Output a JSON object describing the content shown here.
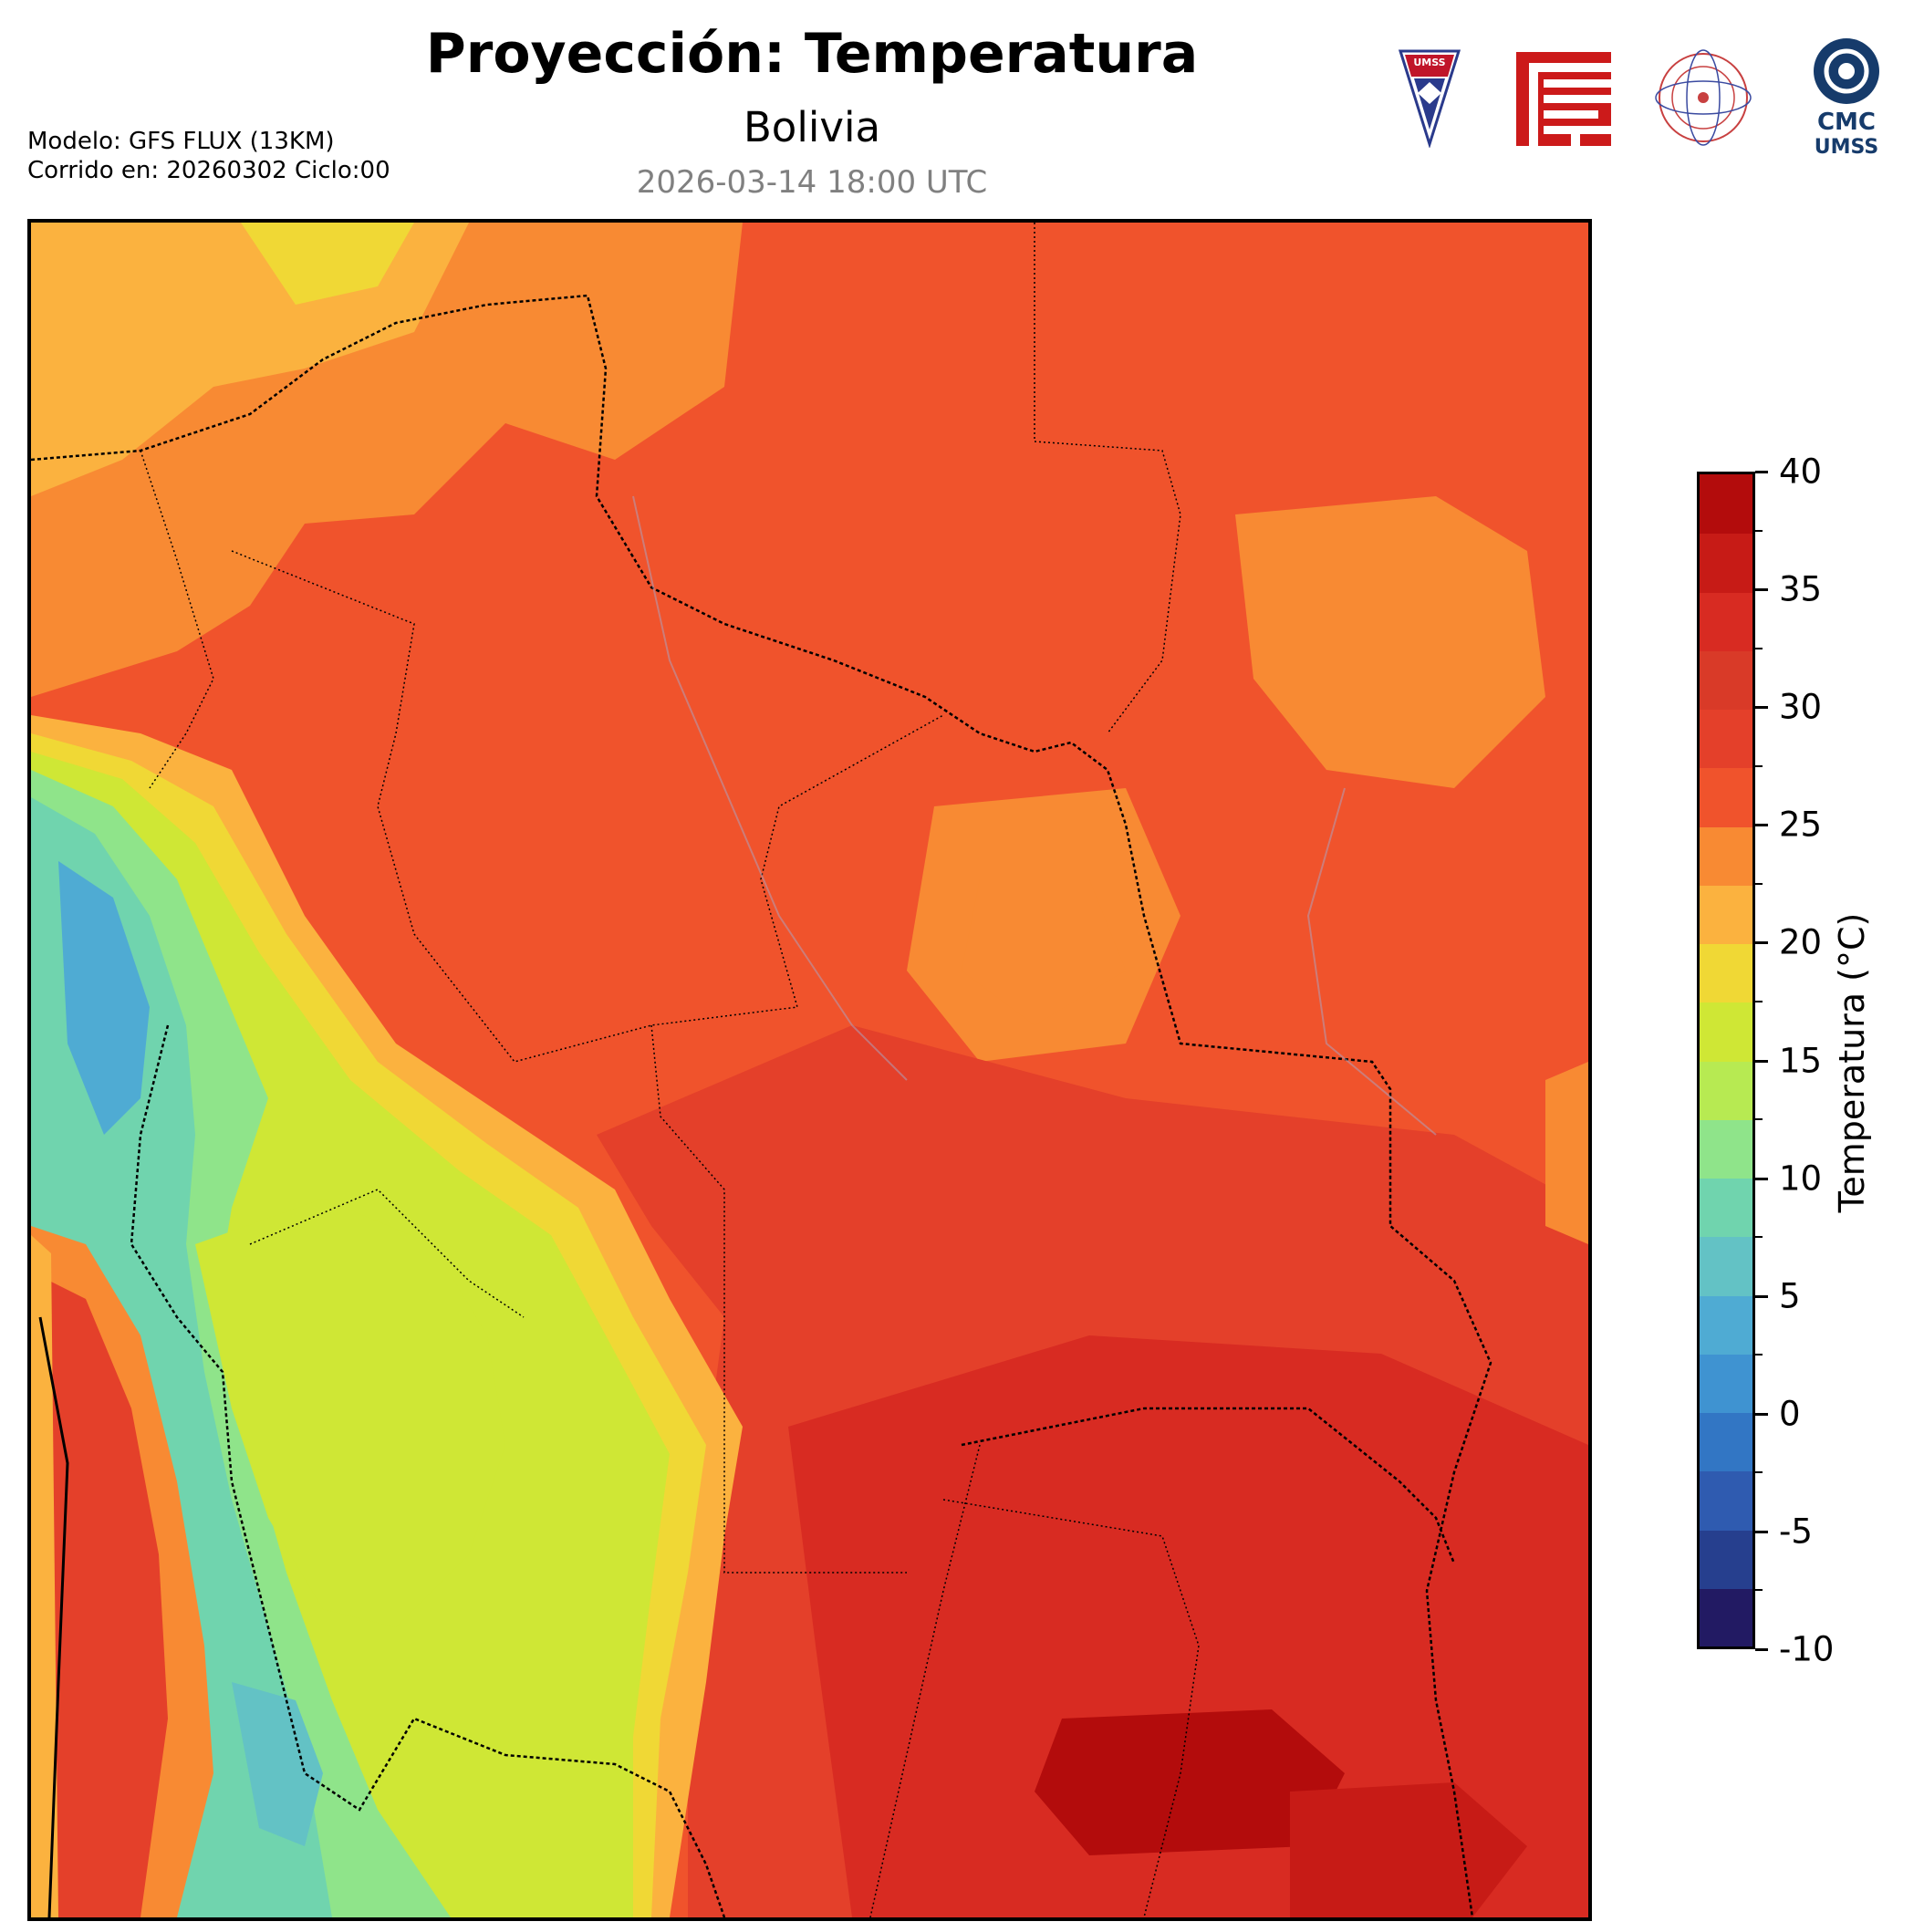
{
  "header": {
    "title": "Proyección: Temperatura",
    "region": "Bolivia",
    "valid_time": "2026-03-14 18:00 UTC",
    "model_line": "Modelo: GFS FLUX (13KM)",
    "run_line": "Corrido en: 20260302 Ciclo:00"
  },
  "logos": [
    {
      "name": "umss-shield-logo",
      "text": "UMSS"
    },
    {
      "name": "red-emblem-logo"
    },
    {
      "name": "departamento-de-fisica-seal"
    },
    {
      "name": "cmc-umss-logo",
      "line1": "CMC",
      "line2": "UMSS"
    }
  ],
  "colorbar": {
    "label": "Temperatura (°C)",
    "min": -10,
    "max": 40,
    "step": 2.5,
    "ticks": [
      "40",
      "35",
      "30",
      "25",
      "20",
      "15",
      "10",
      "5",
      "0",
      "-5",
      "-10"
    ],
    "colors": [
      "#221a63",
      "#263f8e",
      "#2f5bb0",
      "#3276c4",
      "#3f93d1",
      "#4fabd3",
      "#63c2c5",
      "#70d4ae",
      "#8fe48a",
      "#b7ea52",
      "#cfe735",
      "#f0d835",
      "#fbb23f",
      "#f88a33",
      "#f0532c",
      "#e4402a",
      "#d93a28",
      "#d82b22",
      "#c71b16",
      "#b30c0c"
    ]
  },
  "map": {
    "field": "temperature",
    "units": "°C"
  }
}
